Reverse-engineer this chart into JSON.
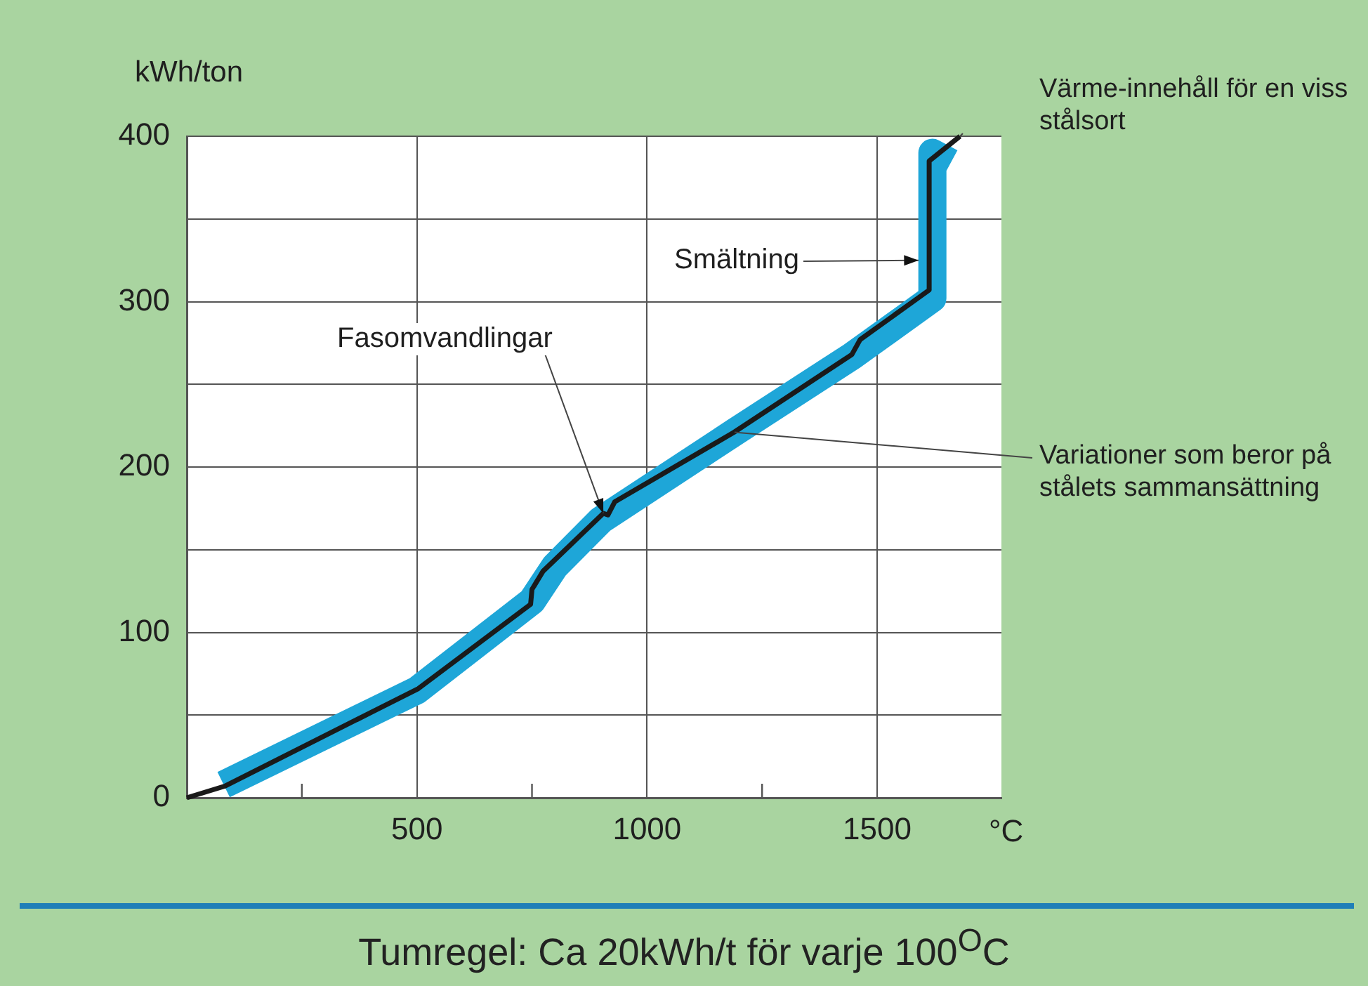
{
  "chart_data": {
    "type": "line",
    "ylabel": "kWh/ton",
    "xlabel": "°C",
    "xlim": [
      0,
      1770
    ],
    "ylim": [
      0,
      400
    ],
    "xticks": [
      {
        "value": 250,
        "label": null
      },
      500,
      {
        "value": 750,
        "label": null
      },
      1000,
      {
        "value": 1250,
        "label": null
      },
      1500
    ],
    "yticks": [
      0,
      {
        "value": 50,
        "label": null
      },
      100,
      {
        "value": 150,
        "label": null
      },
      200,
      {
        "value": 250,
        "label": null
      },
      300,
      {
        "value": 350,
        "label": null
      },
      400
    ],
    "grid": true,
    "legend": false,
    "marker": "none",
    "line_style": "solid",
    "series": [
      {
        "color": "#1ea6d8",
        "x": [
          80,
          500,
          750,
          800,
          900,
          1190,
          1445,
          1620,
          1620,
          1660
        ],
        "values": [
          8,
          65,
          119,
          140,
          168,
          221,
          267,
          302,
          390,
          384
        ]
      },
      {
        "color": "#1a1a1a",
        "x": [
          0,
          82,
          503,
          747,
          750,
          774,
          905,
          915,
          930,
          1189,
          1445,
          1463,
          1613,
          1613,
          1680
        ],
        "values": [
          0,
          7,
          66,
          117,
          126,
          137,
          172,
          171,
          179,
          221,
          268,
          277,
          307,
          385,
          400
        ]
      }
    ],
    "annotations": [
      {
        "text": "Värme-innehåll för en viss stålsort",
        "x": 1680,
        "y": 400
      },
      {
        "text": "Smältning",
        "x": 1590,
        "y": 325
      },
      {
        "text": "Fasomvandlingar",
        "x": 905,
        "y": 172
      },
      {
        "text": "Variationer som beror på stålets sammansättning",
        "x": 1190,
        "y": 221
      },
      "Tumregel: Ca 20kWh/t för varje 100$^{O}$C"
    ]
  }
}
